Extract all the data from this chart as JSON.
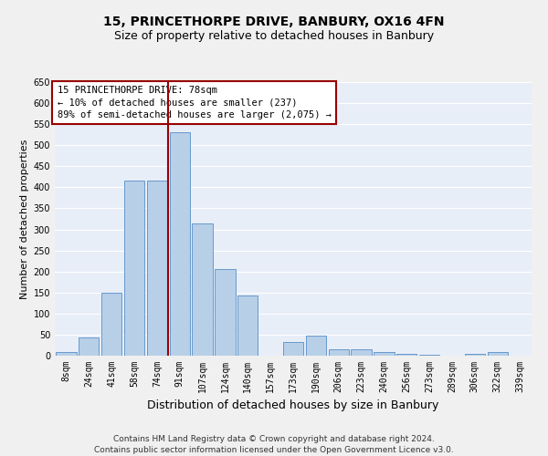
{
  "title": "15, PRINCETHORPE DRIVE, BANBURY, OX16 4FN",
  "subtitle": "Size of property relative to detached houses in Banbury",
  "xlabel": "Distribution of detached houses by size in Banbury",
  "ylabel": "Number of detached properties",
  "footer_line1": "Contains HM Land Registry data © Crown copyright and database right 2024.",
  "footer_line2": "Contains public sector information licensed under the Open Government Licence v3.0.",
  "annotation_line1": "15 PRINCETHORPE DRIVE: 78sqm",
  "annotation_line2": "← 10% of detached houses are smaller (237)",
  "annotation_line3": "89% of semi-detached houses are larger (2,075) →",
  "bar_labels": [
    "8sqm",
    "24sqm",
    "41sqm",
    "58sqm",
    "74sqm",
    "91sqm",
    "107sqm",
    "124sqm",
    "140sqm",
    "157sqm",
    "173sqm",
    "190sqm",
    "206sqm",
    "223sqm",
    "240sqm",
    "256sqm",
    "273sqm",
    "289sqm",
    "306sqm",
    "322sqm",
    "339sqm"
  ],
  "bar_values": [
    8,
    43,
    150,
    415,
    415,
    530,
    315,
    205,
    143,
    0,
    32,
    48,
    15,
    15,
    8,
    5,
    3,
    0,
    5,
    8,
    0
  ],
  "bar_color": "#b8cfe8",
  "bar_edge_color": "#6699cc",
  "background_color": "#e8eef8",
  "grid_color": "#ffffff",
  "vline_x": 4.5,
  "vline_color": "#990000",
  "annotation_box_color": "#990000",
  "ylim": [
    0,
    650
  ],
  "yticks": [
    0,
    50,
    100,
    150,
    200,
    250,
    300,
    350,
    400,
    450,
    500,
    550,
    600,
    650
  ],
  "title_fontsize": 10,
  "subtitle_fontsize": 9,
  "ylabel_fontsize": 8,
  "xlabel_fontsize": 9,
  "tick_fontsize": 7,
  "ann_fontsize": 7.5,
  "footer_fontsize": 6.5
}
